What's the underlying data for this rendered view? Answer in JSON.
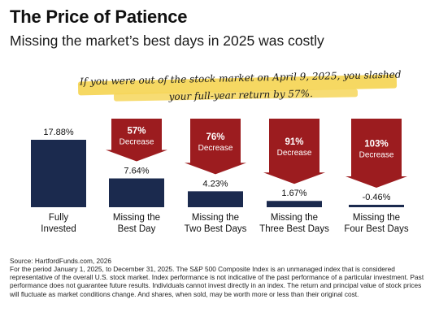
{
  "header": {
    "title": "The Price of Patience",
    "subtitle": "Missing the market’s best days in 2025 was costly"
  },
  "annotation": {
    "text": "If you were out of the stock market on April 9, 2025, you slashed your full-year return by 57%."
  },
  "colors": {
    "bar": "#1b2a4e",
    "arrow": "#9c1c1f",
    "highlight": "#f6d65a"
  },
  "chart_data": {
    "type": "bar",
    "categories": [
      "Fully Invested",
      "Missing the Best Day",
      "Missing the Two Best Days",
      "Missing the Three Best Days",
      "Missing the Four Best Days"
    ],
    "category_lines": [
      [
        "Fully",
        "Invested"
      ],
      [
        "Missing the",
        "Best Day"
      ],
      [
        "Missing the",
        "Two Best Days"
      ],
      [
        "Missing the",
        "Three Best Days"
      ],
      [
        "Missing the",
        "Four Best Days"
      ]
    ],
    "values": [
      17.88,
      7.64,
      4.23,
      1.67,
      -0.46
    ],
    "value_labels": [
      "17.88%",
      "7.64%",
      "4.23%",
      "1.67%",
      "-0.46%"
    ],
    "decreases": [
      null,
      {
        "pct": "57%",
        "label": "Decrease"
      },
      {
        "pct": "76%",
        "label": "Decrease"
      },
      {
        "pct": "91%",
        "label": "Decrease"
      },
      {
        "pct": "103%",
        "label": "Decrease"
      }
    ],
    "unit": "%",
    "grid": false,
    "legend": "none"
  },
  "footer": {
    "source": "Source: HartfordFunds.com, 2026",
    "disclaimer": "For the period January 1, 2025, to December 31, 2025. The S&P 500 Composite Index is an unmanaged index that is considered representative of the overall U.S. stock market. Index performance is not indicative of the past performance of a particular investment. Past performance does not guarantee future results. Individuals cannot invest directly in an index. The return and principal value of stock prices will fluctuate as market conditions change. And shares, when sold, may be worth more or less than their original cost."
  }
}
